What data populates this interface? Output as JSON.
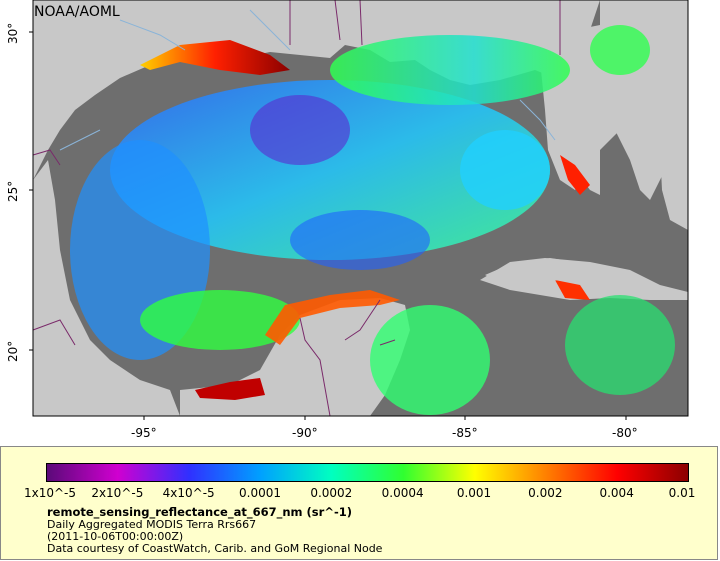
{
  "map": {
    "credit": "NOAA/AOML",
    "lat_labels": [
      "30°",
      "25°",
      "20°"
    ],
    "lon_labels": [
      "-95°",
      "-90°",
      "-85°",
      "-80°"
    ],
    "colors": {
      "land": "#c8c8c8",
      "ocean_nodata": "#6e6e6e",
      "coast_line": "#8ab4d8",
      "border_line": "#7a2a6a"
    }
  },
  "colorbar": {
    "labels": [
      "1x10^-5",
      "2x10^-5",
      "4x10^-5",
      "0.0001",
      "0.0002",
      "0.0004",
      "0.001",
      "0.002",
      "0.004",
      "0.01"
    ],
    "colors": [
      "#5a0a78",
      "#d000d0",
      "#3030ff",
      "#00a0ff",
      "#00ffc0",
      "#30ff30",
      "#ffff00",
      "#ff8000",
      "#ff0000",
      "#8b0000"
    ]
  },
  "info": {
    "variable": "remote_sensing_reflectance_at_667_nm (sr^-1)",
    "product": "Daily Aggregated MODIS Terra Rrs667",
    "time": "(2011-10-06T00:00:00Z)",
    "credit": "Data courtesy of CoastWatch, Carib. and GoM Regional Node"
  }
}
